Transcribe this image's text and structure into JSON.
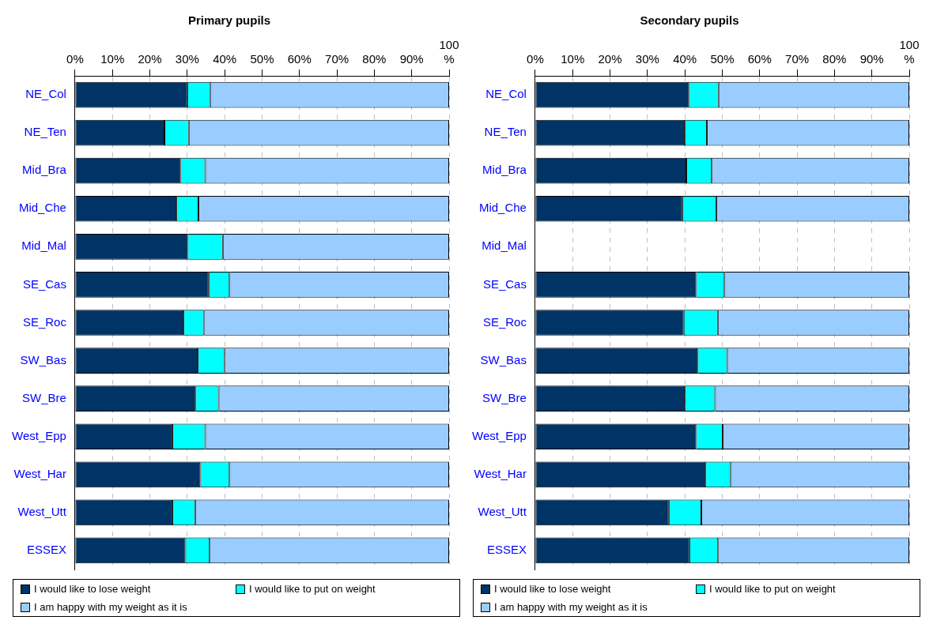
{
  "chart_data": [
    {
      "type": "bar",
      "title": "Primary pupils",
      "orientation": "horizontal",
      "stacked": true,
      "grid": "x",
      "legend": "bottom",
      "xlim": [
        0,
        100
      ],
      "xticks": [
        {
          "value": 0,
          "label": "0%"
        },
        {
          "value": 10,
          "label": "10%"
        },
        {
          "value": 20,
          "label": "20%"
        },
        {
          "value": 30,
          "label": "30%"
        },
        {
          "value": 40,
          "label": "40%"
        },
        {
          "value": 50,
          "label": "50%"
        },
        {
          "value": 60,
          "label": "60%"
        },
        {
          "value": 70,
          "label": "70%"
        },
        {
          "value": 80,
          "label": "80%"
        },
        {
          "value": 90,
          "label": "90%"
        },
        {
          "value": 100,
          "label": "100 %"
        }
      ],
      "categories": [
        "NE_Col",
        "NE_Ten",
        "Mid_Bra",
        "Mid_Che",
        "Mid_Mal",
        "SE_Cas",
        "SE_Roc",
        "SW_Bas",
        "SW_Bre",
        "West_Epp",
        "West_Har",
        "West_Utt",
        "ESSEX"
      ],
      "series": [
        {
          "name": "I would like to lose weight",
          "color": "#003366",
          "values": [
            30.0,
            23.9,
            28.2,
            27.1,
            30.1,
            35.7,
            29.0,
            32.8,
            32.2,
            26.0,
            33.5,
            26.0,
            29.5
          ]
        },
        {
          "name": "I would like to put on weight",
          "color": "#00ffff",
          "values": [
            6.1,
            6.5,
            6.6,
            5.9,
            9.4,
            5.6,
            5.4,
            7.1,
            6.2,
            8.8,
            7.8,
            6.1,
            6.5
          ]
        },
        {
          "name": "I am happy with my weight as it is",
          "color": "#99ccff",
          "values": [
            63.9,
            69.6,
            65.2,
            67.0,
            60.5,
            58.7,
            65.6,
            60.1,
            61.6,
            65.2,
            58.7,
            67.9,
            64.0
          ]
        }
      ]
    },
    {
      "type": "bar",
      "title": "Secondary pupils",
      "orientation": "horizontal",
      "stacked": true,
      "grid": "x",
      "legend": "bottom",
      "xlim": [
        0,
        100
      ],
      "xticks": [
        {
          "value": 0,
          "label": "0%"
        },
        {
          "value": 10,
          "label": "10%"
        },
        {
          "value": 20,
          "label": "20%"
        },
        {
          "value": 30,
          "label": "30%"
        },
        {
          "value": 40,
          "label": "40%"
        },
        {
          "value": 50,
          "label": "50%"
        },
        {
          "value": 60,
          "label": "60%"
        },
        {
          "value": 70,
          "label": "70%"
        },
        {
          "value": 80,
          "label": "80%"
        },
        {
          "value": 90,
          "label": "90%"
        },
        {
          "value": 100,
          "label": "100 %"
        }
      ],
      "categories": [
        "NE_Col",
        "NE_Ten",
        "Mid_Bra",
        "Mid_Che",
        "Mid_Mal",
        "SE_Cas",
        "SE_Roc",
        "SW_Bas",
        "SW_Bre",
        "West_Epp",
        "West_Har",
        "West_Utt",
        "ESSEX"
      ],
      "series": [
        {
          "name": "I would like to lose weight",
          "color": "#003366",
          "values": [
            41.1,
            40.0,
            40.4,
            39.3,
            null,
            43.0,
            39.7,
            43.4,
            40.0,
            43.0,
            45.5,
            35.7,
            41.2
          ]
        },
        {
          "name": "I would like to put on weight",
          "color": "#00ffff",
          "values": [
            7.9,
            5.9,
            6.8,
            9.1,
            null,
            7.6,
            9.1,
            7.9,
            8.1,
            7.1,
            6.8,
            8.7,
            7.7
          ]
        },
        {
          "name": "I am happy with my weight as it is",
          "color": "#99ccff",
          "values": [
            51.0,
            54.1,
            52.8,
            51.6,
            null,
            49.4,
            51.2,
            48.7,
            51.9,
            49.9,
            47.7,
            55.6,
            51.1
          ]
        }
      ]
    }
  ]
}
